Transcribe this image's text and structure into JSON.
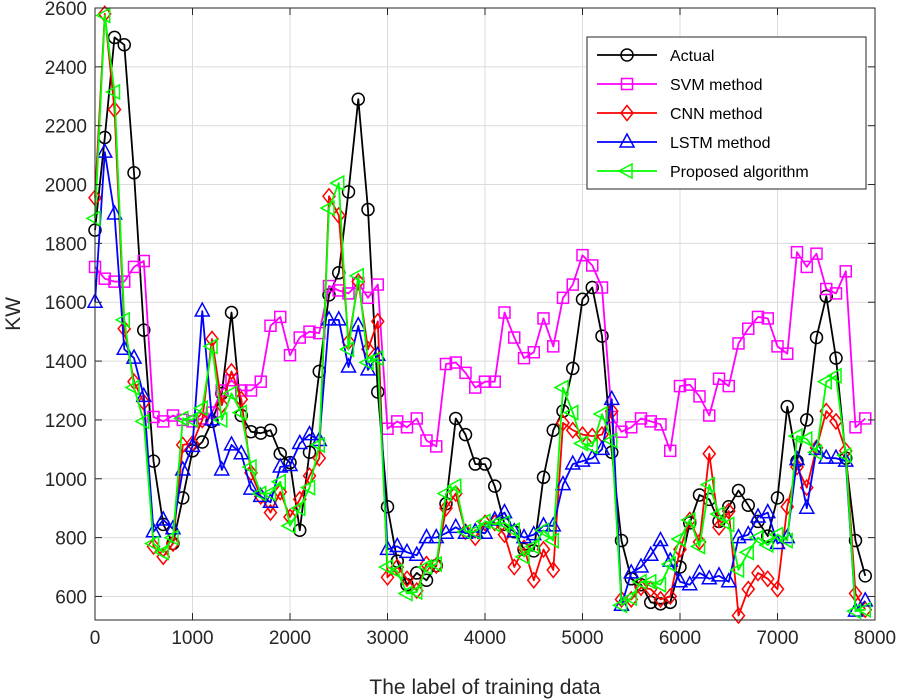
{
  "chart_data": {
    "type": "line",
    "title": "",
    "xlabel": "The label of training data",
    "ylabel": "KW",
    "xlim": [
      0,
      8000
    ],
    "ylim": [
      520,
      2600
    ],
    "xticks": [
      0,
      1000,
      2000,
      3000,
      4000,
      5000,
      6000,
      7000,
      8000
    ],
    "yticks": [
      600,
      800,
      1000,
      1200,
      1400,
      1600,
      1800,
      2000,
      2200,
      2400,
      2600
    ],
    "grid": true,
    "legend_position": "top-right",
    "x": [
      0,
      100,
      200,
      300,
      400,
      500,
      600,
      700,
      800,
      900,
      1000,
      1100,
      1200,
      1300,
      1400,
      1500,
      1600,
      1700,
      1800,
      1900,
      2000,
      2100,
      2200,
      2300,
      2400,
      2500,
      2600,
      2700,
      2800,
      2900,
      3000,
      3100,
      3200,
      3300,
      3400,
      3500,
      3600,
      3700,
      3800,
      3900,
      4000,
      4100,
      4200,
      4300,
      4400,
      4500,
      4600,
      4700,
      4800,
      4900,
      5000,
      5100,
      5200,
      5300,
      5400,
      5500,
      5600,
      5700,
      5800,
      5900,
      6000,
      6100,
      6200,
      6300,
      6400,
      6500,
      6600,
      6700,
      6800,
      6900,
      7000,
      7100,
      7200,
      7300,
      7400,
      7500,
      7600,
      7700,
      7800,
      7900
    ],
    "series": [
      {
        "name": "Actual",
        "color": "#000000",
        "marker": "circle",
        "values": [
          1845,
          2160,
          2500,
          2475,
          2040,
          1505,
          1060,
          845,
          780,
          935,
          1095,
          1125,
          1195,
          1290,
          1565,
          1215,
          1160,
          1155,
          1165,
          1085,
          1055,
          825,
          1090,
          1365,
          1625,
          1700,
          1975,
          2290,
          1915,
          1295,
          905,
          720,
          640,
          680,
          655,
          705,
          915,
          1205,
          1150,
          1050,
          1050,
          975,
          845,
          820,
          760,
          755,
          1005,
          1165,
          1230,
          1375,
          1610,
          1650,
          1485,
          1090,
          790,
          660,
          640,
          580,
          575,
          580,
          700,
          850,
          945,
          930,
          855,
          905,
          960,
          910,
          855,
          805,
          935,
          1245,
          1060,
          1200,
          1480,
          1620,
          1410,
          1070,
          790,
          670
        ]
      },
      {
        "name": "SVM method",
        "color": "#ff00ff",
        "marker": "square",
        "values": [
          1720,
          1680,
          1670,
          1670,
          1720,
          1740,
          1210,
          1195,
          1215,
          1200,
          1195,
          1205,
          1225,
          1300,
          1335,
          1300,
          1300,
          1330,
          1520,
          1550,
          1420,
          1480,
          1500,
          1495,
          1655,
          1640,
          1630,
          1665,
          1615,
          1660,
          1170,
          1195,
          1175,
          1205,
          1130,
          1110,
          1390,
          1395,
          1360,
          1310,
          1330,
          1330,
          1565,
          1480,
          1410,
          1430,
          1545,
          1450,
          1615,
          1660,
          1760,
          1725,
          1650,
          1210,
          1160,
          1175,
          1205,
          1195,
          1185,
          1095,
          1315,
          1320,
          1280,
          1215,
          1340,
          1315,
          1460,
          1510,
          1550,
          1545,
          1450,
          1425,
          1770,
          1720,
          1765,
          1645,
          1630,
          1705,
          1175,
          1205
        ]
      },
      {
        "name": "CNN method",
        "color": "#ff0000",
        "marker": "diamond",
        "values": [
          1955,
          2580,
          2255,
          1510,
          1330,
          1260,
          770,
          735,
          780,
          1115,
          1120,
          1200,
          1475,
          1250,
          1365,
          1270,
          1020,
          940,
          885,
          955,
          870,
          930,
          1010,
          1070,
          1960,
          1895,
          1465,
          1670,
          1440,
          1535,
          665,
          700,
          660,
          620,
          710,
          705,
          900,
          950,
          820,
          800,
          850,
          850,
          810,
          700,
          765,
          655,
          760,
          690,
          1190,
          1165,
          1150,
          1145,
          1150,
          1230,
          590,
          590,
          630,
          625,
          590,
          600,
          760,
          860,
          785,
          1085,
          835,
          890,
          535,
          625,
          680,
          660,
          625,
          905,
          1040,
          970,
          1105,
          1230,
          1195,
          1095,
          610,
          555
        ]
      },
      {
        "name": "LSTM method",
        "color": "#0000ff",
        "marker": "triangle-up",
        "values": [
          1600,
          2110,
          1900,
          1440,
          1410,
          1280,
          820,
          860,
          830,
          1030,
          1110,
          1570,
          1200,
          1030,
          1115,
          1085,
          965,
          940,
          920,
          1040,
          1045,
          1120,
          1150,
          1130,
          1540,
          1540,
          1380,
          1520,
          1370,
          1420,
          760,
          770,
          750,
          740,
          800,
          800,
          815,
          835,
          815,
          820,
          815,
          860,
          885,
          820,
          800,
          810,
          840,
          840,
          980,
          1050,
          1060,
          1070,
          1100,
          1270,
          570,
          680,
          700,
          740,
          790,
          720,
          650,
          640,
          680,
          660,
          670,
          650,
          800,
          810,
          870,
          885,
          780,
          800,
          1065,
          900,
          1100,
          1070,
          1070,
          1060,
          550,
          585
        ]
      },
      {
        "name": "Proposed algorithm",
        "color": "#00ff00",
        "marker": "triangle-left",
        "values": [
          1885,
          2575,
          2315,
          1540,
          1310,
          1195,
          780,
          750,
          800,
          1205,
          1200,
          1240,
          1450,
          1200,
          1290,
          1225,
          1040,
          950,
          950,
          990,
          840,
          900,
          970,
          1115,
          1920,
          2005,
          1440,
          1690,
          1395,
          1410,
          700,
          685,
          610,
          615,
          700,
          710,
          950,
          975,
          820,
          820,
          855,
          845,
          850,
          825,
          735,
          770,
          825,
          790,
          1310,
          1225,
          1120,
          1110,
          1220,
          1130,
          570,
          595,
          650,
          650,
          640,
          710,
          795,
          860,
          770,
          980,
          880,
          845,
          690,
          750,
          800,
          775,
          810,
          790,
          1145,
          1135,
          1090,
          1330,
          1350,
          1080,
          550,
          555
        ]
      }
    ]
  }
}
